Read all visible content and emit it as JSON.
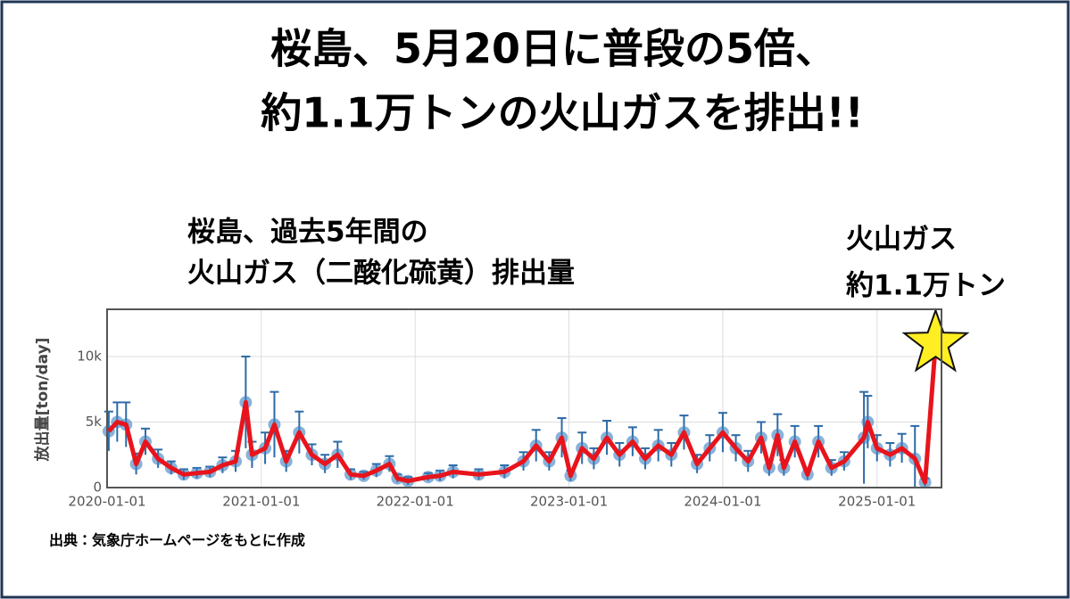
{
  "chart_data": {
    "type": "line",
    "title": [
      "桜島、5月20日に普段の5倍、",
      "約1.1万トンの火山ガスを排出!!"
    ],
    "subtitle": [
      "桜島、過去5年間の",
      "火山ガス（二酸化硫黄）排出量"
    ],
    "annotation": [
      "火山ガス",
      "約1.1万トン"
    ],
    "source": "出典：気象庁ホームページをもとに作成",
    "ylabel": "放出量[ton/day]",
    "x": [
      "2020-01-05",
      "2020-01-25",
      "2020-02-15",
      "2020-03-10",
      "2020-04-01",
      "2020-05-01",
      "2020-06-01",
      "2020-07-01",
      "2020-08-01",
      "2020-09-01",
      "2020-10-01",
      "2020-11-01",
      "2020-11-25",
      "2020-12-10",
      "2021-01-10",
      "2021-02-01",
      "2021-03-01",
      "2021-04-01",
      "2021-05-01",
      "2021-06-01",
      "2021-07-01",
      "2021-08-01",
      "2021-09-01",
      "2021-10-01",
      "2021-11-01",
      "2021-11-20",
      "2021-12-15",
      "2022-02-01",
      "2022-03-01",
      "2022-04-01",
      "2022-06-01",
      "2022-08-01",
      "2022-09-15",
      "2022-10-15",
      "2022-11-15",
      "2022-12-15",
      "2023-01-05",
      "2023-02-01",
      "2023-03-01",
      "2023-04-01",
      "2023-05-01",
      "2023-06-01",
      "2023-07-01",
      "2023-08-01",
      "2023-09-01",
      "2023-10-01",
      "2023-11-01",
      "2023-12-01",
      "2024-01-01",
      "2024-02-01",
      "2024-03-01",
      "2024-04-01",
      "2024-04-20",
      "2024-05-10",
      "2024-05-25",
      "2024-06-20",
      "2024-07-20",
      "2024-08-15",
      "2024-09-15",
      "2024-10-15",
      "2024-12-01",
      "2024-12-10",
      "2025-01-01",
      "2025-02-01",
      "2025-03-01",
      "2025-04-01",
      "2025-04-25",
      "2025-05-20"
    ],
    "series": [
      {
        "color": "#e8141c",
        "values": [
          4300,
          5000,
          4800,
          1800,
          3500,
          2200,
          1500,
          1000,
          1100,
          1200,
          1700,
          2000,
          6500,
          2500,
          3000,
          4800,
          2000,
          4200,
          2500,
          1800,
          2500,
          1000,
          900,
          1300,
          1800,
          700,
          500,
          800,
          900,
          1200,
          1000,
          1200,
          2000,
          3200,
          2000,
          3800,
          900,
          3000,
          2200,
          3800,
          2500,
          3500,
          2200,
          3200,
          2500,
          4200,
          1800,
          3000,
          4200,
          3000,
          2000,
          3800,
          1500,
          4000,
          1500,
          3500,
          1000,
          3500,
          1500,
          2000,
          3800,
          5000,
          3000,
          2500,
          3000,
          2200,
          400,
          11000
        ],
        "errors": [
          1500,
          1500,
          1700,
          800,
          1000,
          700,
          500,
          400,
          400,
          400,
          600,
          800,
          3500,
          1000,
          1200,
          2500,
          800,
          1600,
          800,
          700,
          1000,
          400,
          300,
          500,
          600,
          300,
          300,
          300,
          400,
          500,
          400,
          500,
          700,
          1200,
          700,
          1500,
          400,
          1200,
          800,
          1300,
          900,
          1100,
          800,
          1200,
          900,
          1300,
          700,
          1000,
          1500,
          1000,
          800,
          1200,
          600,
          1600,
          600,
          1200,
          400,
          1200,
          600,
          700,
          3500,
          2000,
          1000,
          900,
          1100,
          2500,
          300,
          null
        ],
        "marker_color": "#3a7fc0"
      }
    ],
    "xlim": [
      "2020-01-01",
      "2025-06-03"
    ],
    "xticks": [
      "2020-01-01",
      "2021-01-01",
      "2022-01-01",
      "2023-01-01",
      "2024-01-01",
      "2025-01-01"
    ],
    "ylim": [
      0,
      13600
    ],
    "yticks": [
      0,
      {
        "value": 5000,
        "label": "5k"
      },
      {
        "value": 10000,
        "label": "10k"
      }
    ],
    "grid": true,
    "star_color": "#ffee22"
  }
}
